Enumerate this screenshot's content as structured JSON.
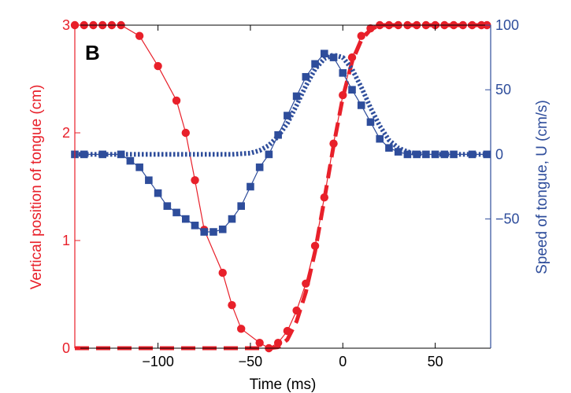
{
  "chart_data": {
    "type": "line",
    "panel_label": "B",
    "xlabel": "Time (ms)",
    "ylabel_left": "Vertical position of tongue  (cm)",
    "ylabel_right": "Speed of tongue, U (cm/s)",
    "xlim": [
      -145,
      80
    ],
    "ylim_left": [
      0,
      3
    ],
    "ylim_right": [
      -150,
      100
    ],
    "x_ticks": [
      -100,
      -50,
      0,
      50
    ],
    "x_tick_labels": [
      "−100",
      "−50",
      "0",
      "50"
    ],
    "y_left_ticks": [
      0,
      1,
      2,
      3
    ],
    "y_left_tick_labels": [
      "0",
      "1",
      "2",
      "3"
    ],
    "y_right_ticks": [
      -50,
      0,
      50,
      100
    ],
    "y_right_tick_labels": [
      "−50",
      "0",
      "50",
      "100"
    ],
    "colors": {
      "position": "#e8202a",
      "speed": "#2e4d9b"
    },
    "series": [
      {
        "axis": "left",
        "style": "marker-line",
        "marker": "circle",
        "color": "#e8202a",
        "x": [
          -145,
          -140,
          -135,
          -130,
          -125,
          -120,
          -110,
          -100,
          -90,
          -85,
          -80,
          -75,
          -65,
          -60,
          -55,
          -45,
          -40,
          -35,
          -30,
          -25,
          -20,
          -15,
          -10,
          -5,
          0,
          5,
          10,
          15,
          20,
          25,
          30,
          35,
          40,
          45,
          50,
          55,
          60,
          65,
          70,
          75,
          78
        ],
        "y": [
          3.0,
          3.0,
          3.0,
          3.0,
          3.0,
          3.0,
          2.9,
          2.62,
          2.3,
          2.0,
          1.56,
          1.1,
          0.7,
          0.4,
          0.18,
          0.05,
          0.0,
          0.05,
          0.16,
          0.35,
          0.6,
          0.95,
          1.4,
          1.9,
          2.35,
          2.7,
          2.9,
          2.97,
          3.0,
          3.0,
          3.0,
          3.0,
          3.0,
          3.0,
          3.0,
          3.0,
          3.0,
          3.0,
          3.0,
          3.0,
          3.0
        ]
      },
      {
        "axis": "left",
        "style": "dashed",
        "color": "#e8202a",
        "x": [
          -145,
          -60,
          -45,
          -40,
          -35,
          -30,
          -25,
          -20,
          -15,
          -10,
          -5,
          0,
          5,
          10,
          15,
          20,
          25,
          30,
          35,
          40,
          50,
          60,
          70,
          78
        ],
        "y": [
          0.0,
          0.0,
          0.0,
          0.0,
          0.01,
          0.08,
          0.25,
          0.52,
          0.9,
          1.38,
          1.88,
          2.33,
          2.66,
          2.86,
          2.96,
          3.0,
          3.0,
          3.0,
          3.0,
          3.0,
          3.0,
          3.0,
          3.0,
          3.0
        ]
      },
      {
        "axis": "right",
        "style": "marker-line",
        "marker": "square",
        "color": "#2e4d9b",
        "x": [
          -145,
          -140,
          -130,
          -120,
          -115,
          -110,
          -105,
          -100,
          -95,
          -90,
          -85,
          -80,
          -75,
          -70,
          -65,
          -60,
          -55,
          -50,
          -45,
          -40,
          -35,
          -30,
          -25,
          -20,
          -15,
          -10,
          -5,
          0,
          5,
          10,
          15,
          20,
          25,
          30,
          35,
          40,
          45,
          50,
          55,
          60,
          70,
          78
        ],
        "y": [
          0,
          0,
          0,
          0,
          -5,
          -10,
          -20,
          -30,
          -40,
          -45,
          -50,
          -55,
          -60,
          -60,
          -58,
          -50,
          -40,
          -25,
          -10,
          0,
          15,
          30,
          45,
          60,
          70,
          78,
          75,
          63,
          50,
          38,
          25,
          12,
          5,
          2,
          0,
          0,
          0,
          0,
          0,
          0,
          0,
          0
        ]
      },
      {
        "axis": "right",
        "style": "dotted",
        "color": "#2e4d9b",
        "x": [
          -145,
          -110,
          -80,
          -60,
          -50,
          -45,
          -40,
          -35,
          -30,
          -25,
          -20,
          -15,
          -10,
          -5,
          0,
          5,
          10,
          15,
          20,
          25,
          30,
          35,
          40,
          50,
          60,
          70,
          78
        ],
        "y": [
          0,
          0,
          0,
          0,
          1,
          3,
          7,
          14,
          24,
          38,
          53,
          66,
          74,
          77,
          75,
          66,
          52,
          36,
          22,
          11,
          5,
          2,
          0.5,
          0,
          0,
          0,
          0
        ]
      }
    ]
  }
}
